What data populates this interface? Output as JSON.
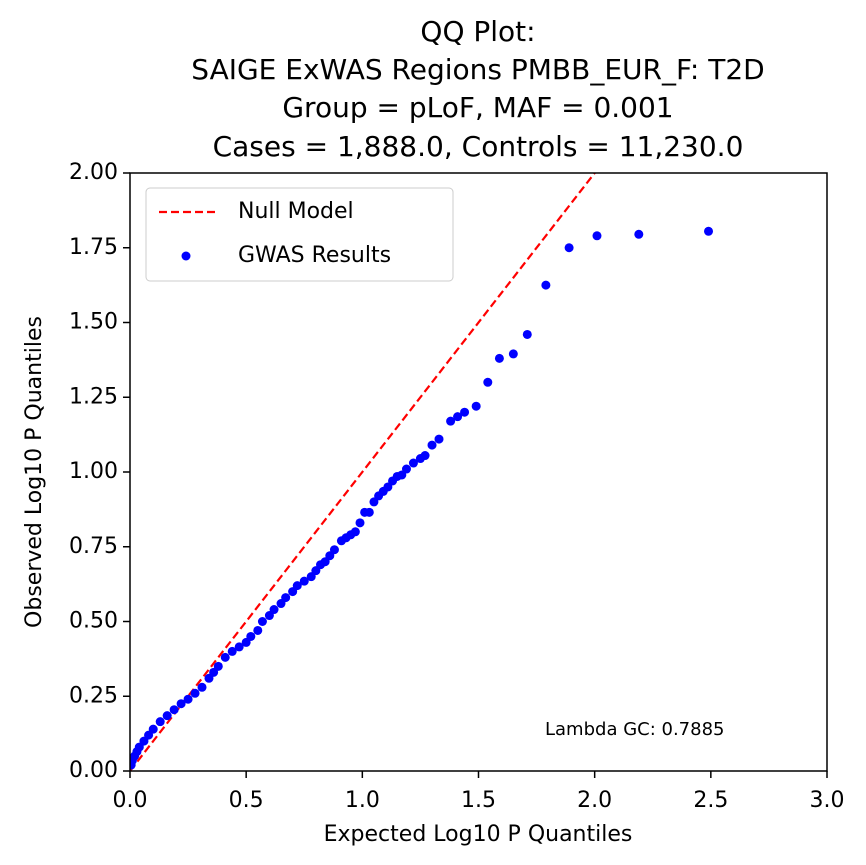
{
  "chart_data": {
    "type": "scatter",
    "title": [
      "QQ Plot:",
      "SAIGE ExWAS Regions PMBB_EUR_F: T2D",
      "Group = pLoF, MAF = 0.001",
      "Cases = 1,888.0, Controls = 11,230.0"
    ],
    "x_label": "Expected Log10 P Quantiles",
    "y_label": "Observed Log10 P Quantiles",
    "annotation": "Lambda GC: 0.7885",
    "legend": "upper left",
    "xlim": [
      0,
      3
    ],
    "ylim": [
      0,
      2
    ],
    "xticks": [
      {
        "value": 0,
        "label": "0.0"
      },
      {
        "value": 0.5,
        "label": "0.5"
      },
      {
        "value": 1,
        "label": "1.0"
      },
      {
        "value": 1.5,
        "label": "1.5"
      },
      {
        "value": 2,
        "label": "2.0"
      },
      {
        "value": 2.5,
        "label": "2.5"
      },
      {
        "value": 3,
        "label": "3.0"
      }
    ],
    "yticks": [
      {
        "value": 0,
        "label": "0.00"
      },
      {
        "value": 0.25,
        "label": "0.25"
      },
      {
        "value": 0.5,
        "label": "0.50"
      },
      {
        "value": 0.75,
        "label": "0.75"
      },
      {
        "value": 1,
        "label": "1.00"
      },
      {
        "value": 1.25,
        "label": "1.25"
      },
      {
        "value": 1.5,
        "label": "1.50"
      },
      {
        "value": 1.75,
        "label": "1.75"
      },
      {
        "value": 2,
        "label": "2.00"
      }
    ],
    "series": [
      {
        "name": "Null Model",
        "type": "line",
        "color": "#ff0000",
        "x": [
          0,
          2.49
        ],
        "values": [
          0,
          2.49
        ]
      },
      {
        "name": "GWAS Results",
        "type": "scatter",
        "color": "#0000ff",
        "x": [
          2.49,
          2.19,
          2.01,
          1.89,
          1.79,
          1.71,
          1.65,
          1.59,
          1.54,
          1.49,
          1.44,
          1.41,
          1.38,
          1.33,
          1.3,
          1.27,
          1.25,
          1.22,
          1.19,
          1.17,
          1.15,
          1.13,
          1.11,
          1.09,
          1.07,
          1.05,
          1.03,
          1.01,
          0.99,
          0.97,
          0.95,
          0.93,
          0.91,
          0.88,
          0.86,
          0.84,
          0.82,
          0.8,
          0.78,
          0.75,
          0.72,
          0.7,
          0.67,
          0.65,
          0.62,
          0.6,
          0.57,
          0.55,
          0.52,
          0.5,
          0.47,
          0.44,
          0.41,
          0.38,
          0.36,
          0.34,
          0.31,
          0.28,
          0.25,
          0.22,
          0.19,
          0.16,
          0.13,
          0.1,
          0.08,
          0.06,
          0.04,
          0.03,
          0.02,
          0.01,
          0.005
        ],
        "values": [
          1.805,
          1.795,
          1.79,
          1.75,
          1.625,
          1.46,
          1.395,
          1.38,
          1.3,
          1.22,
          1.2,
          1.185,
          1.17,
          1.11,
          1.09,
          1.055,
          1.045,
          1.03,
          1.01,
          0.99,
          0.985,
          0.97,
          0.95,
          0.935,
          0.92,
          0.9,
          0.865,
          0.865,
          0.83,
          0.8,
          0.79,
          0.78,
          0.77,
          0.74,
          0.72,
          0.7,
          0.69,
          0.67,
          0.65,
          0.635,
          0.62,
          0.6,
          0.58,
          0.56,
          0.54,
          0.52,
          0.5,
          0.47,
          0.45,
          0.43,
          0.415,
          0.4,
          0.38,
          0.35,
          0.33,
          0.31,
          0.28,
          0.26,
          0.24,
          0.225,
          0.205,
          0.185,
          0.165,
          0.14,
          0.12,
          0.1,
          0.08,
          0.065,
          0.05,
          0.035,
          0.02
        ]
      }
    ]
  }
}
